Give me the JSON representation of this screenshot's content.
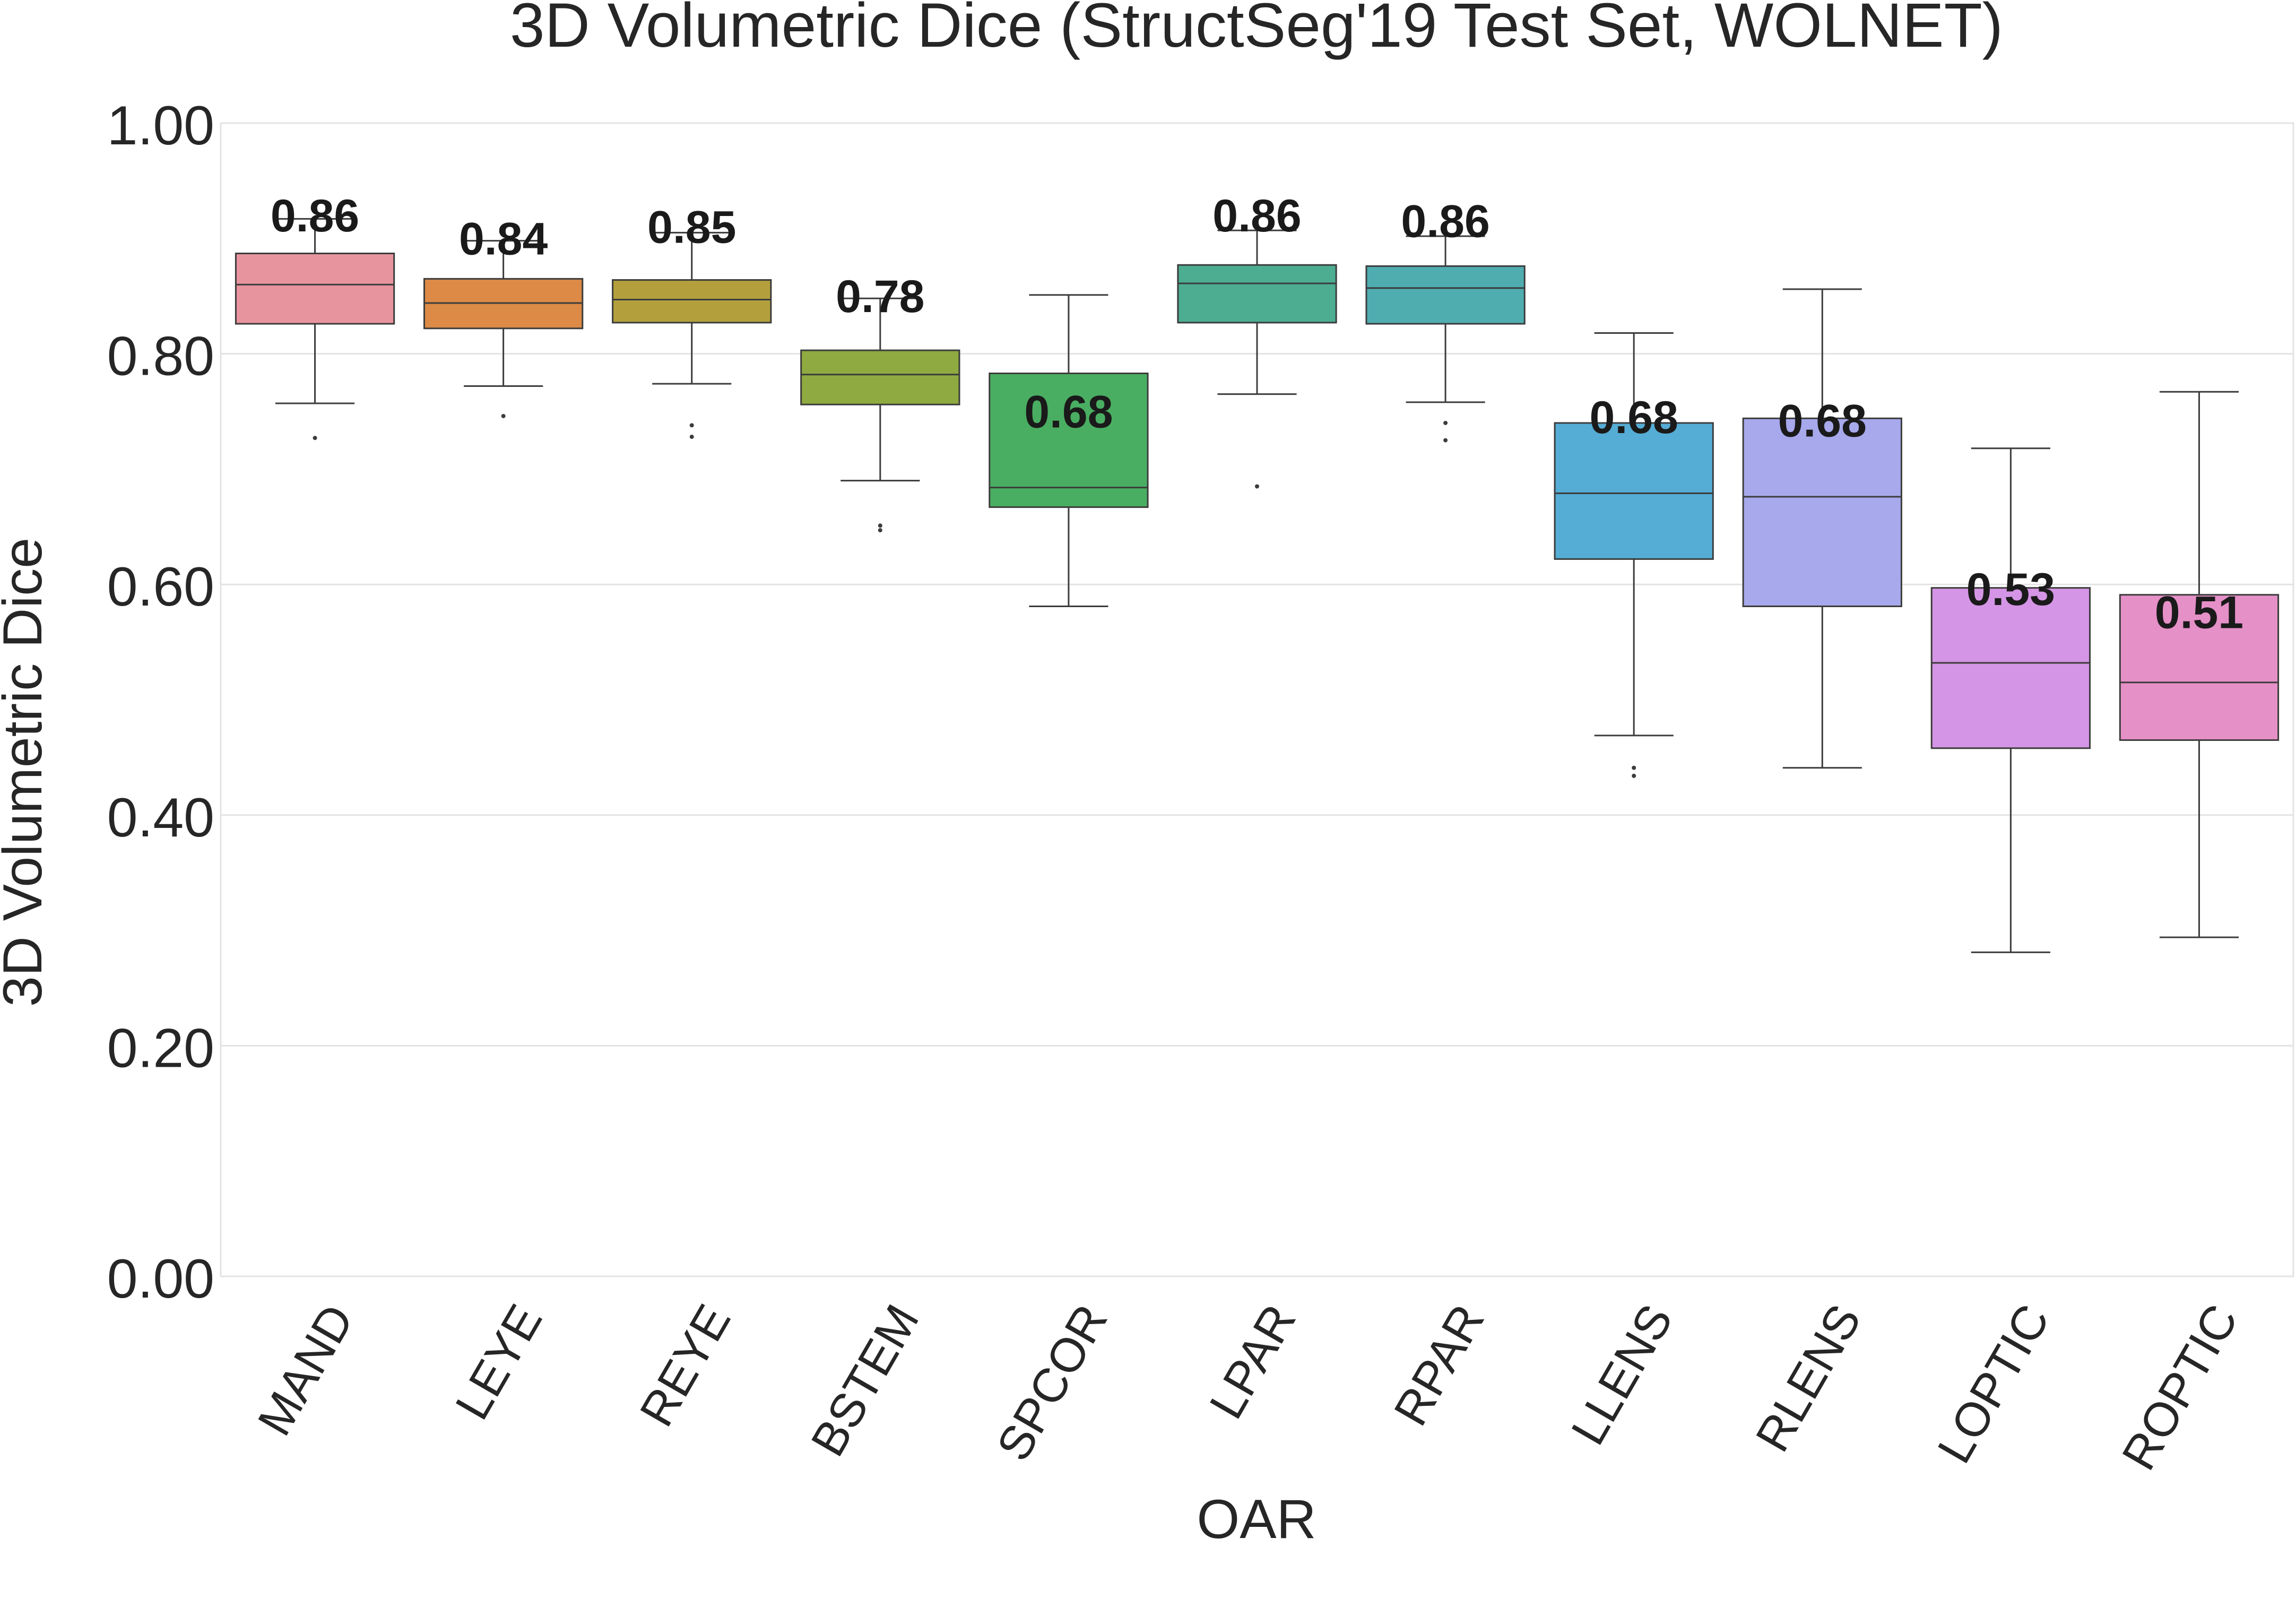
{
  "chart_data": {
    "type": "box",
    "title": "3D Volumetric Dice (StructSeg'19 Test Set, WOLNET)",
    "xlabel": "OAR",
    "ylabel": "3D Volumetric Dice",
    "ylim": [
      0,
      1
    ],
    "y_ticks": [
      "0.00",
      "0.20",
      "0.40",
      "0.60",
      "0.80",
      "1.00"
    ],
    "grid": "horizontal",
    "categories": [
      "MAND",
      "LEYE",
      "REYE",
      "BSTEM",
      "SPCOR",
      "LPAR",
      "RPAR",
      "LLENS",
      "RLENS",
      "LOPTIC",
      "ROPTIC"
    ],
    "boxes": [
      {
        "category": "MAND",
        "color": "#e8949f",
        "whisker_low": 0.757,
        "q1": 0.826,
        "median": 0.86,
        "q3": 0.887,
        "whisker_high": 0.917,
        "outliers": [
          0.727
        ],
        "median_label": "0.86"
      },
      {
        "category": "LEYE",
        "color": "#dc8a45",
        "whisker_low": 0.772,
        "q1": 0.822,
        "median": 0.844,
        "q3": 0.865,
        "whisker_high": 0.898,
        "outliers": [
          0.746
        ],
        "median_label": "0.84"
      },
      {
        "category": "REYE",
        "color": "#b3a03d",
        "whisker_low": 0.774,
        "q1": 0.827,
        "median": 0.847,
        "q3": 0.864,
        "whisker_high": 0.905,
        "outliers": [
          0.738,
          0.728
        ],
        "median_label": "0.85"
      },
      {
        "category": "BSTEM",
        "color": "#8faa40",
        "whisker_low": 0.69,
        "q1": 0.756,
        "median": 0.782,
        "q3": 0.803,
        "whisker_high": 0.848,
        "outliers": [
          0.651,
          0.647
        ],
        "median_label": "0.78"
      },
      {
        "category": "SPCOR",
        "color": "#4aae62",
        "whisker_low": 0.581,
        "q1": 0.667,
        "median": 0.684,
        "q3": 0.783,
        "whisker_high": 0.851,
        "outliers": [],
        "median_label": "0.68"
      },
      {
        "category": "LPAR",
        "color": "#4cad91",
        "whisker_low": 0.765,
        "q1": 0.827,
        "median": 0.861,
        "q3": 0.877,
        "whisker_high": 0.907,
        "outliers": [
          0.685
        ],
        "median_label": "0.86"
      },
      {
        "category": "RPAR",
        "color": "#4fadb0",
        "whisker_low": 0.758,
        "q1": 0.826,
        "median": 0.857,
        "q3": 0.876,
        "whisker_high": 0.902,
        "outliers": [
          0.74,
          0.725
        ],
        "median_label": "0.86"
      },
      {
        "category": "LLENS",
        "color": "#55acd4",
        "whisker_low": 0.469,
        "q1": 0.622,
        "median": 0.679,
        "q3": 0.74,
        "whisker_high": 0.818,
        "outliers": [
          0.441,
          0.434
        ],
        "median_label": "0.68"
      },
      {
        "category": "RLENS",
        "color": "#a7a9ec",
        "whisker_low": 0.441,
        "q1": 0.581,
        "median": 0.676,
        "q3": 0.744,
        "whisker_high": 0.856,
        "outliers": [],
        "median_label": "0.68"
      },
      {
        "category": "LOPTIC",
        "color": "#d595e6",
        "whisker_low": 0.281,
        "q1": 0.458,
        "median": 0.532,
        "q3": 0.597,
        "whisker_high": 0.718,
        "outliers": [],
        "median_label": "0.53"
      },
      {
        "category": "ROPTIC",
        "color": "#e690c8",
        "whisker_low": 0.294,
        "q1": 0.465,
        "median": 0.515,
        "q3": 0.591,
        "whisker_high": 0.767,
        "outliers": [],
        "median_label": "0.51"
      }
    ],
    "median_label_values": [
      0.92,
      0.9,
      0.91,
      0.85,
      0.75,
      0.92,
      0.915,
      0.745,
      0.742,
      0.596,
      0.576
    ]
  }
}
